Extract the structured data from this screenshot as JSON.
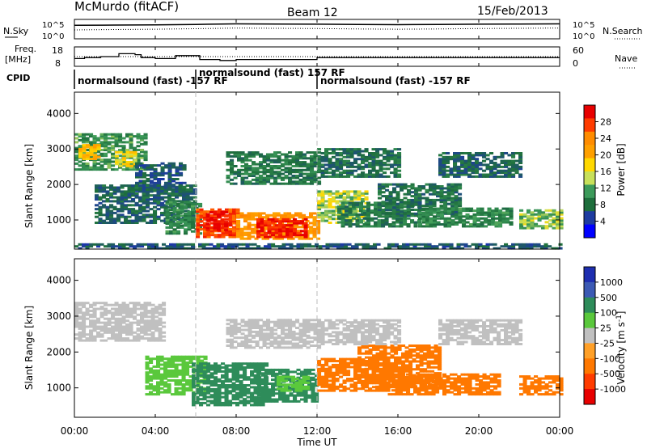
{
  "header": {
    "title": "McMurdo (fitACF)",
    "beam": "Beam 12",
    "date": "15/Feb/2013"
  },
  "noise_panel": {
    "left_label": "N.Sky",
    "right_label": "N.Search",
    "left_ticks": [
      "10^5",
      "10^0"
    ],
    "right_ticks": [
      "10^5",
      "10^0"
    ]
  },
  "freq_panel": {
    "left_label_1": "Freq.",
    "left_label_2": "[MHz]",
    "right_label": "Nave",
    "left_ticks": [
      "18",
      "8"
    ],
    "right_ticks": [
      "60",
      "0"
    ]
  },
  "cpid_panel": {
    "label": "CPID",
    "segments": [
      {
        "text": "normalsound (fast) -157 RF",
        "start_hour": 0,
        "end_hour": 6
      },
      {
        "text": "normalsound (fast) 157 RF",
        "start_hour": 6,
        "end_hour": 12
      },
      {
        "text": "normalsound (fast) -157 RF",
        "start_hour": 12,
        "end_hour": 24
      }
    ]
  },
  "time_axis": {
    "label": "Time UT",
    "ticks": [
      "00:00",
      "04:00",
      "08:00",
      "12:00",
      "16:00",
      "20:00",
      "00:00"
    ]
  },
  "power_colorbar": {
    "label": "Power [dB]",
    "ticks": [
      "28",
      "24",
      "20",
      "16",
      "12",
      "8",
      "4"
    ],
    "colors": [
      "#e80000",
      "#ff3c00",
      "#ff8c00",
      "#ffa000",
      "#ffd800",
      "#c8e05a",
      "#3c9a5a",
      "#1e6e3c",
      "#1e3ca0",
      "#0000ff"
    ]
  },
  "velocity_colorbar": {
    "label": "Velocity [m s^-1]",
    "ticks": [
      "1000",
      "500",
      "100",
      "25",
      "-25",
      "-100",
      "-500",
      "-1000"
    ],
    "colors": [
      "#1e2eb0",
      "#3c5ab4",
      "#2e8c5a",
      "#5ac83c",
      "#c0c0c0",
      "#ffa028",
      "#ff7800",
      "#ff3c00",
      "#e80000"
    ]
  },
  "colors": {
    "sky_noise": "#000000",
    "search_noise": "#000000",
    "grid_dash": "#bbbbbb"
  },
  "chart_data": [
    {
      "type": "line",
      "title": "N.Sky / N.Search",
      "xlabel": "Time UT",
      "x_range_hours": [
        0,
        24
      ],
      "y_scale": "log",
      "ylim": [
        1,
        100000
      ],
      "series": [
        {
          "name": "N.Sky",
          "style": "solid",
          "x": [
            0,
            2,
            4,
            6,
            8,
            10,
            12,
            14,
            16,
            18,
            20,
            22,
            24
          ],
          "y": [
            3000,
            3500,
            4000,
            5000,
            7000,
            6500,
            6000,
            5000,
            4500,
            5000,
            6000,
            6500,
            7000
          ]
        },
        {
          "name": "N.Search",
          "style": "dotted",
          "x": [
            0,
            2,
            4,
            6,
            8,
            10,
            12,
            14,
            16,
            18,
            20,
            22,
            24
          ],
          "y": [
            200,
            250,
            300,
            400,
            600,
            500,
            450,
            350,
            300,
            350,
            450,
            500,
            600
          ]
        }
      ]
    },
    {
      "type": "line",
      "title": "Freq. [MHz] / Nave",
      "xlabel": "Time UT",
      "x_range_hours": [
        0,
        24
      ],
      "series": [
        {
          "name": "Freq. [MHz]",
          "style": "solid-step",
          "ylim": [
            8,
            18
          ],
          "x": [
            0,
            0.5,
            1.3,
            2.2,
            3.0,
            3.3,
            4.0,
            5.0,
            6.2,
            7.2,
            8.0,
            12.0,
            18.0,
            24.0
          ],
          "y": [
            12,
            12.5,
            13,
            14.5,
            14,
            12.5,
            12,
            13.5,
            11.5,
            11,
            11.5,
            12.5,
            12.5,
            12.5
          ]
        },
        {
          "name": "Nave",
          "style": "dotted",
          "ylim": [
            0,
            60
          ],
          "x": [
            0,
            24
          ],
          "y": [
            30,
            30
          ]
        }
      ]
    },
    {
      "type": "heatmap",
      "title": "Power [dB]",
      "xlabel": "Time UT",
      "ylabel": "Slant Range [km]",
      "x_range_hours": [
        0,
        24
      ],
      "ylim": [
        180,
        4600
      ],
      "y_ticks": [
        1000,
        2000,
        3000,
        4000
      ],
      "clim": [
        0,
        30
      ],
      "regions": [
        {
          "t0": 0.0,
          "t1": 3.5,
          "r0": 2400,
          "r1": 3400,
          "value": 11
        },
        {
          "t0": 0.2,
          "t1": 1.2,
          "r0": 2700,
          "r1": 3100,
          "value": 18
        },
        {
          "t0": 2.0,
          "t1": 3.0,
          "r0": 2500,
          "r1": 2900,
          "value": 16
        },
        {
          "t0": 3.0,
          "t1": 5.5,
          "r0": 1800,
          "r1": 2600,
          "value": 6
        },
        {
          "t0": 1.0,
          "t1": 6.0,
          "r0": 900,
          "r1": 2000,
          "value": 7
        },
        {
          "t0": 4.5,
          "t1": 6.2,
          "r0": 600,
          "r1": 1500,
          "value": 10
        },
        {
          "t0": 6.0,
          "t1": 8.0,
          "r0": 500,
          "r1": 1300,
          "value": 27
        },
        {
          "t0": 6.5,
          "t1": 7.5,
          "r0": 700,
          "r1": 1200,
          "value": 30
        },
        {
          "t0": 8.0,
          "t1": 12.0,
          "r0": 450,
          "r1": 1200,
          "value": 22
        },
        {
          "t0": 9.0,
          "t1": 11.5,
          "r0": 500,
          "r1": 1000,
          "value": 29
        },
        {
          "t0": 7.5,
          "t1": 12.0,
          "r0": 2000,
          "r1": 2900,
          "value": 9
        },
        {
          "t0": 12.0,
          "t1": 14.5,
          "r0": 900,
          "r1": 1800,
          "value": 14
        },
        {
          "t0": 12.0,
          "t1": 16.0,
          "r0": 2200,
          "r1": 3000,
          "value": 8
        },
        {
          "t0": 13.0,
          "t1": 17.0,
          "r0": 800,
          "r1": 1500,
          "value": 9
        },
        {
          "t0": 15.0,
          "t1": 19.0,
          "r0": 1100,
          "r1": 2000,
          "value": 8
        },
        {
          "t0": 17.0,
          "t1": 21.5,
          "r0": 800,
          "r1": 1300,
          "value": 10
        },
        {
          "t0": 18.0,
          "t1": 22.0,
          "r0": 2200,
          "r1": 2900,
          "value": 7
        },
        {
          "t0": 22.0,
          "t1": 24.0,
          "r0": 750,
          "r1": 1300,
          "value": 13
        },
        {
          "t0": 0.0,
          "t1": 24.0,
          "r0": 180,
          "r1": 320,
          "value": 6
        }
      ]
    },
    {
      "type": "heatmap",
      "title": "Velocity [m s^-1]",
      "xlabel": "Time UT",
      "ylabel": "Slant Range [km]",
      "x_range_hours": [
        0,
        24
      ],
      "ylim": [
        180,
        4600
      ],
      "y_ticks": [
        1000,
        2000,
        3000,
        4000
      ],
      "regions": [
        {
          "t0": 0.0,
          "t1": 4.5,
          "r0": 2300,
          "r1": 3400,
          "value": 0
        },
        {
          "t0": 3.5,
          "t1": 6.5,
          "r0": 800,
          "r1": 1900,
          "value": 80
        },
        {
          "t0": 5.8,
          "t1": 9.5,
          "r0": 500,
          "r1": 1700,
          "value": 150
        },
        {
          "t0": 9.0,
          "t1": 12.0,
          "r0": 600,
          "r1": 1500,
          "value": 180
        },
        {
          "t0": 10.0,
          "t1": 11.5,
          "r0": 900,
          "r1": 1300,
          "value": 60
        },
        {
          "t0": 7.5,
          "t1": 12.0,
          "r0": 2100,
          "r1": 2900,
          "value": 0
        },
        {
          "t0": 12.0,
          "t1": 15.5,
          "r0": 900,
          "r1": 1800,
          "value": -200
        },
        {
          "t0": 14.0,
          "t1": 18.0,
          "r0": 1000,
          "r1": 2200,
          "value": -300
        },
        {
          "t0": 15.5,
          "t1": 21.0,
          "r0": 800,
          "r1": 1400,
          "value": -250
        },
        {
          "t0": 22.0,
          "t1": 24.0,
          "r0": 800,
          "r1": 1300,
          "value": -200
        },
        {
          "t0": 12.0,
          "t1": 16.0,
          "r0": 2200,
          "r1": 2900,
          "value": 0
        },
        {
          "t0": 18.0,
          "t1": 22.0,
          "r0": 2200,
          "r1": 2900,
          "value": 0
        }
      ]
    }
  ]
}
